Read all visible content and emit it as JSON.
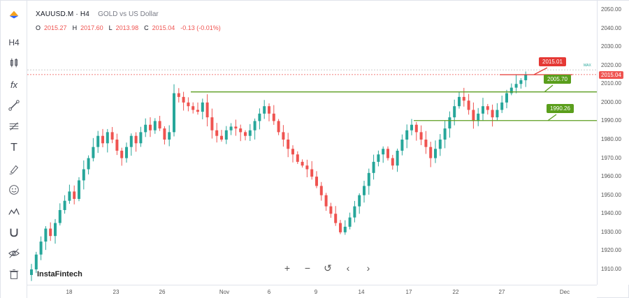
{
  "legend": {
    "symbol": "XAUUSD.M · H4",
    "description": "GOLD vs US Dollar",
    "o_label": "O",
    "o_value": "2015.27",
    "h_label": "H",
    "h_value": "2017.60",
    "l_label": "L",
    "l_value": "2013.98",
    "c_label": "C",
    "c_value": "2015.04",
    "change": "-0.13 (-0.01%)"
  },
  "brand": "InstaFintech",
  "levels": {
    "current_price": "2015.04",
    "resistance_tag": "2015.01",
    "pivot_tag": "2005.70",
    "support_tag": "1990.26",
    "max_label": "MAX"
  },
  "colors": {
    "up": "#26a69a",
    "down": "#ef5350",
    "level_line": "#5b9e1f",
    "red_tag": "#e53935",
    "green_tag": "#5a9e1c",
    "price_tag": "#ef5350"
  },
  "nav": {
    "zoom_in": "+",
    "zoom_out": "−",
    "reset": "↺",
    "prev": "‹",
    "next": "›"
  },
  "toolbar_icons": [
    "logo-icon",
    "timeframe-icon",
    "candles-icon",
    "indicators-icon",
    "line-tool-icon",
    "fib-icon",
    "text-icon",
    "brush-icon",
    "emoji-icon",
    "pattern-icon",
    "magnet-icon",
    "hide-icon",
    "delete-icon"
  ],
  "toolbar_labels": {
    "timeframe": "H4",
    "text": "T",
    "indicators": "fx"
  },
  "price_axis": [
    "2050.00",
    "2040.00",
    "2030.00",
    "2020.00",
    "2010.00",
    "2000.00",
    "1990.00",
    "1980.00",
    "1970.00",
    "1960.00",
    "1950.00",
    "1940.00",
    "1930.00",
    "1920.00",
    "1910.00"
  ],
  "time_axis": [
    "18",
    "23",
    "26",
    "Nov",
    "6",
    "9",
    "14",
    "17",
    "22",
    "27",
    "Dec"
  ],
  "chart_data": {
    "type": "candlestick",
    "symbol": "XAUUSD.M",
    "timeframe": "H4",
    "ylim": [
      1903,
      2054
    ],
    "x_labels": [
      "18",
      "23",
      "26",
      "Nov",
      "6",
      "9",
      "14",
      "17",
      "22",
      "27",
      "Dec"
    ],
    "y_ticks": [
      2050,
      2040,
      2030,
      2020,
      2010,
      2000,
      1990,
      1980,
      1970,
      1960,
      1950,
      1940,
      1930,
      1920,
      1910
    ],
    "series": [
      {
        "name": "XAUUSD.M",
        "values": [
          1910,
          1918,
          1925,
          1932,
          1928,
          1935,
          1942,
          1947,
          1952,
          1948,
          1958,
          1964,
          1970,
          1976,
          1982,
          1978,
          1984,
          1980,
          1974,
          1970,
          1976,
          1982,
          1978,
          1984,
          1988,
          1985,
          1990,
          1986,
          1980,
          1984,
          2005,
          2003,
          2000,
          1998,
          1996,
          1995,
          2000,
          1992,
          1985,
          1982,
          1980,
          1985,
          1987,
          1986,
          1984,
          1982,
          1985,
          1990,
          1994,
          1998,
          1994,
          1990,
          1984,
          1980,
          1975,
          1972,
          1968,
          1966,
          1964,
          1960,
          1955,
          1950,
          1944,
          1940,
          1935,
          1930,
          1933,
          1938,
          1944,
          1950,
          1955,
          1962,
          1968,
          1972,
          1975,
          1970,
          1966,
          1974,
          1980,
          1985,
          1988,
          1984,
          1980,
          1976,
          1970,
          1975,
          1980,
          1986,
          1992,
          1998,
          2003,
          2001,
          1996,
          1990,
          1994,
          1998,
          1996,
          1992,
          1996,
          2000,
          2005,
          2008,
          2010,
          2012,
          2015
        ]
      }
    ],
    "horizontal_levels": [
      2015.01,
      2005.7,
      1990.26
    ],
    "last": {
      "open": 2015.27,
      "high": 2017.6,
      "low": 2013.98,
      "close": 2015.04,
      "change": -0.13,
      "change_pct": -0.01
    }
  }
}
